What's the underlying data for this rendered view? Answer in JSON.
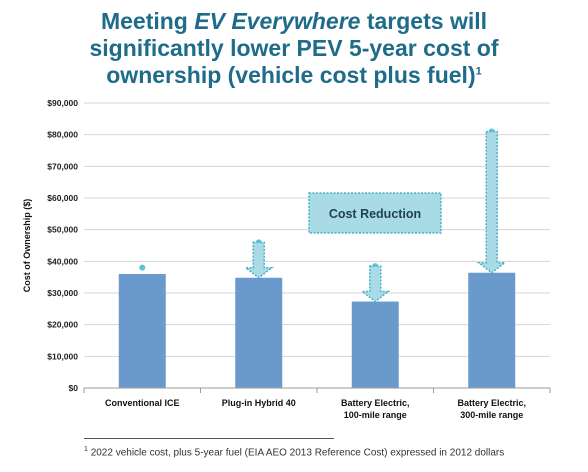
{
  "title": {
    "line1_pre": "Meeting ",
    "line1_em": "EV Everywhere",
    "line1_post": " targets will",
    "line2": "significantly lower PEV 5-year cost of",
    "line3": "ownership (vehicle cost plus fuel)",
    "footnote_mark": "1"
  },
  "footnote": {
    "mark": "1",
    "text": "2022 vehicle cost, plus 5-year fuel (EIA AEO 2013 Reference Cost) expressed in 2012 dollars"
  },
  "chart_data": {
    "type": "bar",
    "categories": [
      [
        "Conventional ICE"
      ],
      [
        "Plug-in Hybrid 40"
      ],
      [
        "Battery Electric,",
        "100-mile range"
      ],
      [
        "Battery Electric,",
        "300-mile range"
      ]
    ],
    "values": [
      36000,
      34800,
      27300,
      36400
    ],
    "baseline_values": [
      38000,
      46000,
      38500,
      81000
    ],
    "ylabel": "Cost of Ownership ($)",
    "ylim": [
      0,
      90000
    ],
    "yticks": [
      {
        "value": 0,
        "label": "$0"
      },
      {
        "value": 10000,
        "label": "$10,000"
      },
      {
        "value": 20000,
        "label": "$20,000"
      },
      {
        "value": 30000,
        "label": "$30,000"
      },
      {
        "value": 40000,
        "label": "$40,000"
      },
      {
        "value": 50000,
        "label": "$50,000"
      },
      {
        "value": 60000,
        "label": "$60,000"
      },
      {
        "value": 70000,
        "label": "$70,000"
      },
      {
        "value": 80000,
        "label": "$80,000"
      },
      {
        "value": 90000,
        "label": "$90,000"
      }
    ],
    "annotation": "Cost Reduction",
    "grid": true,
    "colors": {
      "bar": "#6a9acb",
      "marker": "#5bc4d8",
      "arrow_fill": "#a8dbe6",
      "arrow_stroke": "#49b3c9",
      "grid": "#d4d4d4",
      "title": "#1f6b8a"
    }
  }
}
